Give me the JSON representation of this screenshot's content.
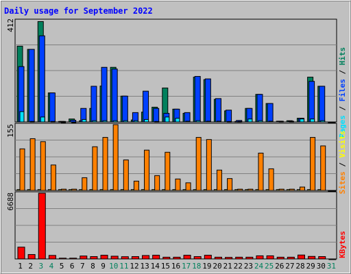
{
  "title": "Daily usage for September 2022",
  "colors": {
    "background": "#c0c0c0",
    "title": "#0000ff",
    "hits": "#00805c",
    "files": "#0040ff",
    "pages": "#00e0ff",
    "sites": "#ff8000",
    "visits": "#ffff00",
    "kbytes": "#ff0000",
    "weekend_label": "#00805c",
    "weekday_label": "#000000"
  },
  "chart_data": [
    {
      "type": "bar",
      "panel": "hits_files_pages",
      "title": "Daily usage for September 2022",
      "categories": [
        "1",
        "2",
        "3",
        "4",
        "5",
        "6",
        "7",
        "8",
        "9",
        "10",
        "11",
        "12",
        "13",
        "14",
        "15",
        "16",
        "17",
        "18",
        "19",
        "20",
        "21",
        "22",
        "23",
        "24",
        "25",
        "26",
        "27",
        "28",
        "29",
        "30",
        "31"
      ],
      "y_axis_label": "412",
      "ylim": [
        0,
        412
      ],
      "grid": true,
      "side_label": [
        "Pages",
        "/",
        "Files",
        "/",
        "Hits"
      ],
      "series": [
        {
          "name": "Hits",
          "color": "#00805c",
          "values": [
            308,
            295,
            408,
            118,
            2,
            12,
            5,
            55,
            146,
            222,
            105,
            8,
            40,
            60,
            138,
            52,
            35,
            182,
            172,
            92,
            45,
            2,
            55,
            112,
            75,
            3,
            5,
            15,
            182,
            145,
            0
          ]
        },
        {
          "name": "Files",
          "color": "#0040ff",
          "values": [
            225,
            295,
            350,
            118,
            2,
            7,
            55,
            145,
            222,
            215,
            105,
            38,
            125,
            55,
            35,
            52,
            38,
            185,
            175,
            95,
            48,
            6,
            55,
            112,
            75,
            3,
            3,
            15,
            165,
            145,
            0
          ]
        },
        {
          "name": "Pages",
          "color": "#00e0ff",
          "values": [
            42,
            2,
            20,
            2,
            0,
            0,
            10,
            5,
            5,
            5,
            5,
            5,
            10,
            2,
            20,
            15,
            3,
            5,
            3,
            3,
            2,
            2,
            12,
            5,
            3,
            2,
            2,
            12,
            12,
            5,
            0
          ]
        }
      ]
    },
    {
      "type": "bar",
      "panel": "sites_visits",
      "categories": [
        "1",
        "2",
        "3",
        "4",
        "5",
        "6",
        "7",
        "8",
        "9",
        "10",
        "11",
        "12",
        "13",
        "14",
        "15",
        "16",
        "17",
        "18",
        "19",
        "20",
        "21",
        "22",
        "23",
        "24",
        "25",
        "26",
        "27",
        "28",
        "29",
        "30",
        "31"
      ],
      "y_axis_label": "155",
      "ylim": [
        0,
        155
      ],
      "grid": true,
      "side_label": [
        "Sites",
        "/",
        "Visits"
      ],
      "series": [
        {
          "name": "Visits",
          "color": "#ffff00",
          "values": [
            2,
            2,
            2,
            2,
            2,
            2,
            2,
            2,
            2,
            2,
            2,
            2,
            2,
            2,
            2,
            2,
            2,
            2,
            2,
            2,
            2,
            2,
            2,
            2,
            2,
            2,
            2,
            2,
            2,
            2,
            0
          ]
        },
        {
          "name": "Sites",
          "color": "#ff8000",
          "values": [
            98,
            122,
            115,
            60,
            3,
            3,
            30,
            103,
            125,
            155,
            72,
            22,
            95,
            35,
            90,
            27,
            18,
            125,
            120,
            48,
            28,
            3,
            3,
            88,
            51,
            3,
            3,
            8,
            125,
            105,
            0
          ]
        }
      ]
    },
    {
      "type": "bar",
      "panel": "kbytes",
      "categories": [
        "1",
        "2",
        "3",
        "4",
        "5",
        "6",
        "7",
        "8",
        "9",
        "10",
        "11",
        "12",
        "13",
        "14",
        "15",
        "16",
        "17",
        "18",
        "19",
        "20",
        "21",
        "22",
        "23",
        "24",
        "25",
        "26",
        "27",
        "28",
        "29",
        "30",
        "31"
      ],
      "y_axis_label": "6688",
      "ylim": [
        0,
        6688
      ],
      "grid": true,
      "side_label": [
        "KBytes"
      ],
      "series": [
        {
          "name": "KBytes",
          "color": "#ff0000",
          "values": [
            1200,
            450,
            6688,
            360,
            80,
            80,
            300,
            240,
            380,
            280,
            230,
            240,
            350,
            380,
            180,
            180,
            380,
            240,
            380,
            180,
            160,
            180,
            180,
            320,
            320,
            180,
            180,
            400,
            260,
            240,
            0
          ]
        }
      ]
    }
  ],
  "x_labels": [
    {
      "day": "1",
      "weekend": false
    },
    {
      "day": "2",
      "weekend": false
    },
    {
      "day": "3",
      "weekend": true
    },
    {
      "day": "4",
      "weekend": true
    },
    {
      "day": "5",
      "weekend": false
    },
    {
      "day": "6",
      "weekend": false
    },
    {
      "day": "7",
      "weekend": false
    },
    {
      "day": "8",
      "weekend": false
    },
    {
      "day": "9",
      "weekend": false
    },
    {
      "day": "10",
      "weekend": true
    },
    {
      "day": "11",
      "weekend": true
    },
    {
      "day": "12",
      "weekend": false
    },
    {
      "day": "13",
      "weekend": false
    },
    {
      "day": "14",
      "weekend": false
    },
    {
      "day": "15",
      "weekend": false
    },
    {
      "day": "16",
      "weekend": false
    },
    {
      "day": "17",
      "weekend": true
    },
    {
      "day": "18",
      "weekend": true
    },
    {
      "day": "19",
      "weekend": false
    },
    {
      "day": "20",
      "weekend": false
    },
    {
      "day": "21",
      "weekend": false
    },
    {
      "day": "22",
      "weekend": false
    },
    {
      "day": "23",
      "weekend": false
    },
    {
      "day": "24",
      "weekend": true
    },
    {
      "day": "25",
      "weekend": true
    },
    {
      "day": "26",
      "weekend": false
    },
    {
      "day": "27",
      "weekend": false
    },
    {
      "day": "28",
      "weekend": false
    },
    {
      "day": "29",
      "weekend": false
    },
    {
      "day": "30",
      "weekend": false
    },
    {
      "day": "31",
      "weekend": true
    }
  ]
}
